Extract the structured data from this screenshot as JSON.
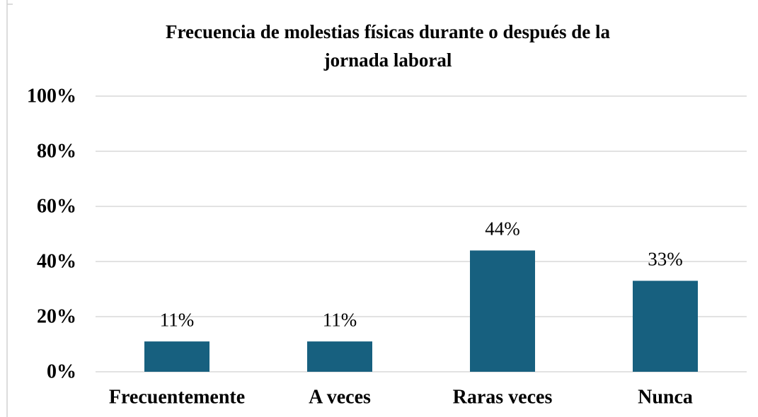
{
  "chart_data": {
    "type": "bar",
    "title": [
      "Frecuencia de molestias físicas durante o después de la",
      "jornada laboral"
    ],
    "categories": [
      "Frecuentemente",
      "A veces",
      "Raras veces",
      "Nunca"
    ],
    "values": [
      11,
      11,
      44,
      33
    ],
    "value_labels": [
      "11%",
      "11%",
      "44%",
      "33%"
    ],
    "color": "#17607f",
    "ylim": [
      0,
      100
    ],
    "yticks": [
      {
        "value": 0,
        "label": "0%"
      },
      {
        "value": 20,
        "label": "20%"
      },
      {
        "value": 40,
        "label": "40%"
      },
      {
        "value": 60,
        "label": "60%"
      },
      {
        "value": 80,
        "label": "80%"
      },
      {
        "value": 100,
        "label": "100%"
      }
    ],
    "grid": true
  }
}
